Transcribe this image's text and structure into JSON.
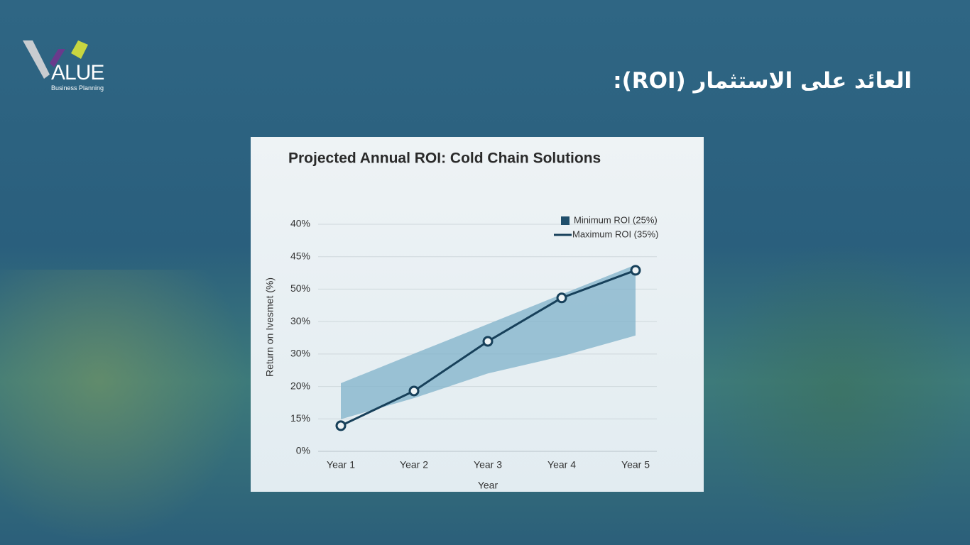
{
  "header": {
    "title": "العائد على الاستثمار (ROI):",
    "logo": {
      "wordmark": "ALUE",
      "tagline": "Business Planning"
    }
  },
  "chart_data": {
    "type": "line",
    "title": "Projected Annual ROI: Cold Chain Solutions",
    "x_label": "Year",
    "y_label": "Return on Ivesmet (%)",
    "categories": [
      "Year 1",
      "Year 2",
      "Year 3",
      "Year 4",
      "Year 5"
    ],
    "ylim": [
      0,
      7
    ],
    "yticks": [
      {
        "value": 0,
        "label": "0%"
      },
      {
        "value": 1,
        "label": "15%"
      },
      {
        "value": 2,
        "label": "20%"
      },
      {
        "value": 3,
        "label": "30%"
      },
      {
        "value": 4,
        "label": "30%"
      },
      {
        "value": 5,
        "label": "50%"
      },
      {
        "value": 6,
        "label": "45%"
      },
      {
        "value": 7,
        "label": "40%"
      }
    ],
    "grid": true,
    "legend": "top-right",
    "series": [
      {
        "name": "Minimum ROI (25%)",
        "color": "#7fb1c9",
        "legend_color": "#1f4e6b",
        "lower": [
          0.99,
          1.64,
          2.4,
          2.93,
          3.57
        ],
        "upper": [
          2.1,
          3.01,
          3.92,
          4.84,
          5.75
        ]
      },
      {
        "name": "Maximum ROI (35%)",
        "color": "#17405a",
        "values": [
          0.79,
          1.86,
          3.39,
          4.73,
          5.58
        ]
      }
    ]
  }
}
